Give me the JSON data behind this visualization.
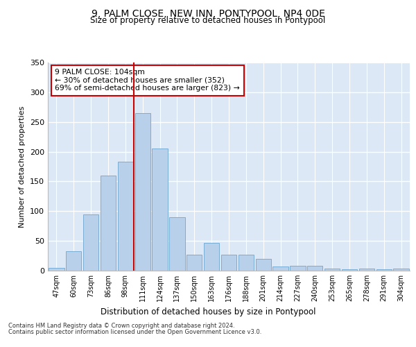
{
  "title": "9, PALM CLOSE, NEW INN, PONTYPOOL, NP4 0DE",
  "subtitle": "Size of property relative to detached houses in Pontypool",
  "xlabel": "Distribution of detached houses by size in Pontypool",
  "ylabel": "Number of detached properties",
  "bar_labels": [
    "47sqm",
    "60sqm",
    "73sqm",
    "86sqm",
    "98sqm",
    "111sqm",
    "124sqm",
    "137sqm",
    "150sqm",
    "163sqm",
    "176sqm",
    "188sqm",
    "201sqm",
    "214sqm",
    "227sqm",
    "240sqm",
    "253sqm",
    "265sqm",
    "278sqm",
    "291sqm",
    "304sqm"
  ],
  "bar_values": [
    5,
    33,
    95,
    160,
    183,
    265,
    205,
    90,
    27,
    47,
    27,
    27,
    20,
    7,
    8,
    8,
    3,
    2,
    4,
    2,
    3
  ],
  "bar_color": "#b8d0ea",
  "bar_edge_color": "#7aadd4",
  "vline_x": 4.5,
  "vline_color": "#cc0000",
  "annotation_text": "9 PALM CLOSE: 104sqm\n← 30% of detached houses are smaller (352)\n69% of semi-detached houses are larger (823) →",
  "annotation_box_color": "#ffffff",
  "annotation_box_edge": "#cc0000",
  "ylim": [
    0,
    350
  ],
  "yticks": [
    0,
    50,
    100,
    150,
    200,
    250,
    300,
    350
  ],
  "bg_color": "#dce8f5",
  "grid_color": "#ffffff",
  "footer1": "Contains HM Land Registry data © Crown copyright and database right 2024.",
  "footer2": "Contains public sector information licensed under the Open Government Licence v3.0."
}
